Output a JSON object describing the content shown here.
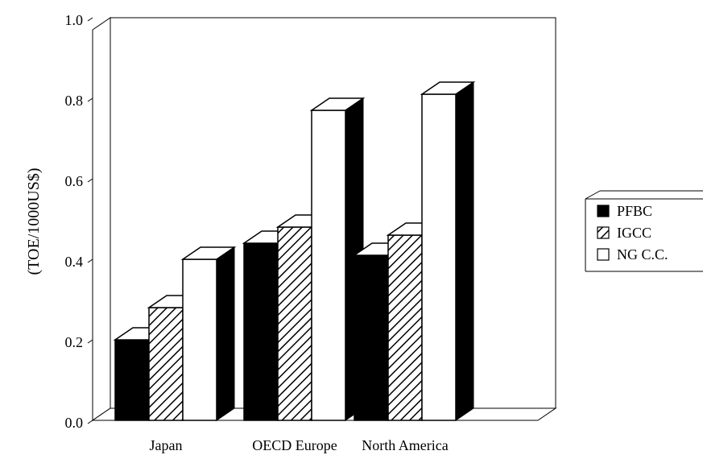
{
  "chart_data": {
    "type": "bar",
    "categories": [
      "Japan",
      "OECD Europe",
      "North America"
    ],
    "series": [
      {
        "name": "PFBC",
        "values": [
          0.2,
          0.44,
          0.41
        ],
        "fill": "solid",
        "color": "#000000"
      },
      {
        "name": "IGCC",
        "values": [
          0.28,
          0.48,
          0.46
        ],
        "fill": "hatched",
        "color": "#000000"
      },
      {
        "name": "NG C.C.",
        "values": [
          0.4,
          0.77,
          0.81
        ],
        "fill": "open",
        "color": "#ffffff"
      }
    ],
    "ylabel": "(TOE/1000US$)",
    "ylim": [
      0,
      1.0
    ],
    "yticks": [
      "0.0",
      "0.2",
      "0.4",
      "0.6",
      "0.8",
      "1.0"
    ],
    "legend_position": "right",
    "style": "3d"
  }
}
